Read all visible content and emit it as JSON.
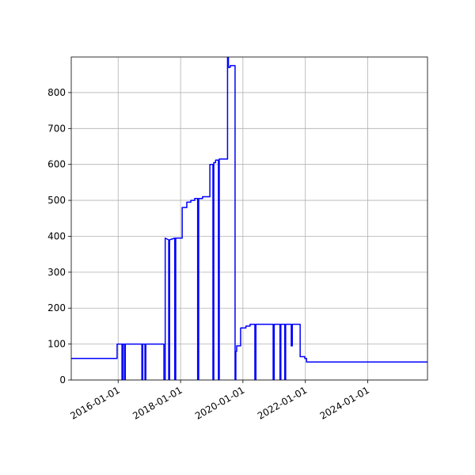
{
  "chart_data": {
    "type": "line",
    "color": "#0000ff",
    "grid": true,
    "xlim": [
      "2014-07-01",
      "2025-12-01"
    ],
    "xticks": [
      "2016-01-01",
      "2018-01-01",
      "2020-01-01",
      "2022-01-01",
      "2024-01-01"
    ],
    "ylim": [
      0,
      899
    ],
    "yticks": [
      0,
      100,
      200,
      300,
      400,
      500,
      600,
      700,
      800
    ],
    "x": [
      "2014-07-01",
      "2015-12-20",
      "2015-12-20",
      "2016-02-15",
      "2016-02-15",
      "2016-02-25",
      "2016-02-25",
      "2016-03-15",
      "2016-03-15",
      "2016-03-25",
      "2016-03-25",
      "2016-10-05",
      "2016-10-05",
      "2016-10-15",
      "2016-10-15",
      "2016-11-10",
      "2016-11-10",
      "2016-11-20",
      "2016-11-20",
      "2017-06-20",
      "2017-06-20",
      "2017-07-05",
      "2017-07-05",
      "2017-08-15",
      "2017-08-15",
      "2017-08-25",
      "2017-08-25",
      "2017-10-25",
      "2017-10-25",
      "2017-11-05",
      "2017-11-05",
      "2018-01-20",
      "2018-01-20",
      "2018-03-15",
      "2018-03-15",
      "2018-05-01",
      "2018-05-01",
      "2018-06-15",
      "2018-06-15",
      "2018-07-20",
      "2018-07-20",
      "2018-08-01",
      "2018-08-01",
      "2018-09-15",
      "2018-09-15",
      "2018-12-10",
      "2018-12-10",
      "2019-01-15",
      "2019-01-15",
      "2019-01-25",
      "2019-01-25",
      "2019-02-15",
      "2019-02-15",
      "2019-03-20",
      "2019-03-20",
      "2019-03-30",
      "2019-03-30",
      "2019-07-05",
      "2019-07-05",
      "2019-07-15",
      "2019-07-15",
      "2019-08-05",
      "2019-08-05",
      "2019-10-01",
      "2019-10-01",
      "2019-10-10",
      "2019-10-10",
      "2019-10-20",
      "2019-10-20",
      "2019-12-05",
      "2019-12-05",
      "2020-02-05",
      "2020-02-05",
      "2020-03-25",
      "2020-03-25",
      "2020-05-20",
      "2020-05-20",
      "2020-06-01",
      "2020-06-01",
      "2020-12-20",
      "2020-12-20",
      "2021-01-01",
      "2021-01-01",
      "2021-03-10",
      "2021-03-10",
      "2021-03-20",
      "2021-03-20",
      "2021-05-05",
      "2021-05-05",
      "2021-05-15",
      "2021-05-15",
      "2021-07-20",
      "2021-07-20",
      "2021-08-01",
      "2021-08-01",
      "2021-11-01",
      "2021-11-01",
      "2021-12-25",
      "2021-12-25",
      "2022-01-15",
      "2022-01-15",
      "2025-12-01"
    ],
    "values": [
      60,
      60,
      100,
      100,
      0,
      0,
      100,
      100,
      0,
      0,
      100,
      100,
      0,
      0,
      100,
      100,
      0,
      0,
      100,
      100,
      0,
      0,
      395,
      390,
      0,
      0,
      390,
      395,
      0,
      0,
      395,
      395,
      480,
      480,
      495,
      495,
      500,
      500,
      505,
      505,
      0,
      0,
      505,
      505,
      510,
      510,
      600,
      600,
      0,
      0,
      605,
      605,
      612,
      612,
      0,
      0,
      615,
      615,
      899,
      899,
      870,
      870,
      875,
      875,
      0,
      0,
      80,
      80,
      95,
      95,
      145,
      145,
      150,
      150,
      155,
      155,
      0,
      0,
      155,
      155,
      0,
      0,
      155,
      155,
      0,
      0,
      155,
      155,
      0,
      0,
      155,
      155,
      95,
      95,
      155,
      155,
      65,
      65,
      60,
      60,
      50,
      50
    ]
  }
}
